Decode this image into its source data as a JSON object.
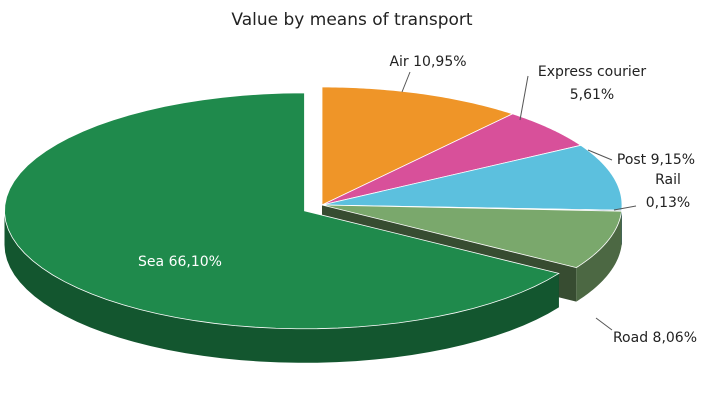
{
  "chart_data": {
    "type": "pie",
    "title": "Value by means of transport",
    "categories": [
      "Air",
      "Express courier",
      "Post",
      "Rail",
      "Road",
      "Sea"
    ],
    "values": [
      10.95,
      5.61,
      9.15,
      0.13,
      8.06,
      66.1
    ],
    "value_labels": [
      "10,95%",
      "5,61%",
      "9,15%",
      "0,13%",
      "8,06%",
      "66,10%"
    ],
    "colors": [
      "#ef9528",
      "#d8509a",
      "#5cc0de",
      "#2e5f80",
      "#7aa86c",
      "#1f8a4c"
    ]
  }
}
